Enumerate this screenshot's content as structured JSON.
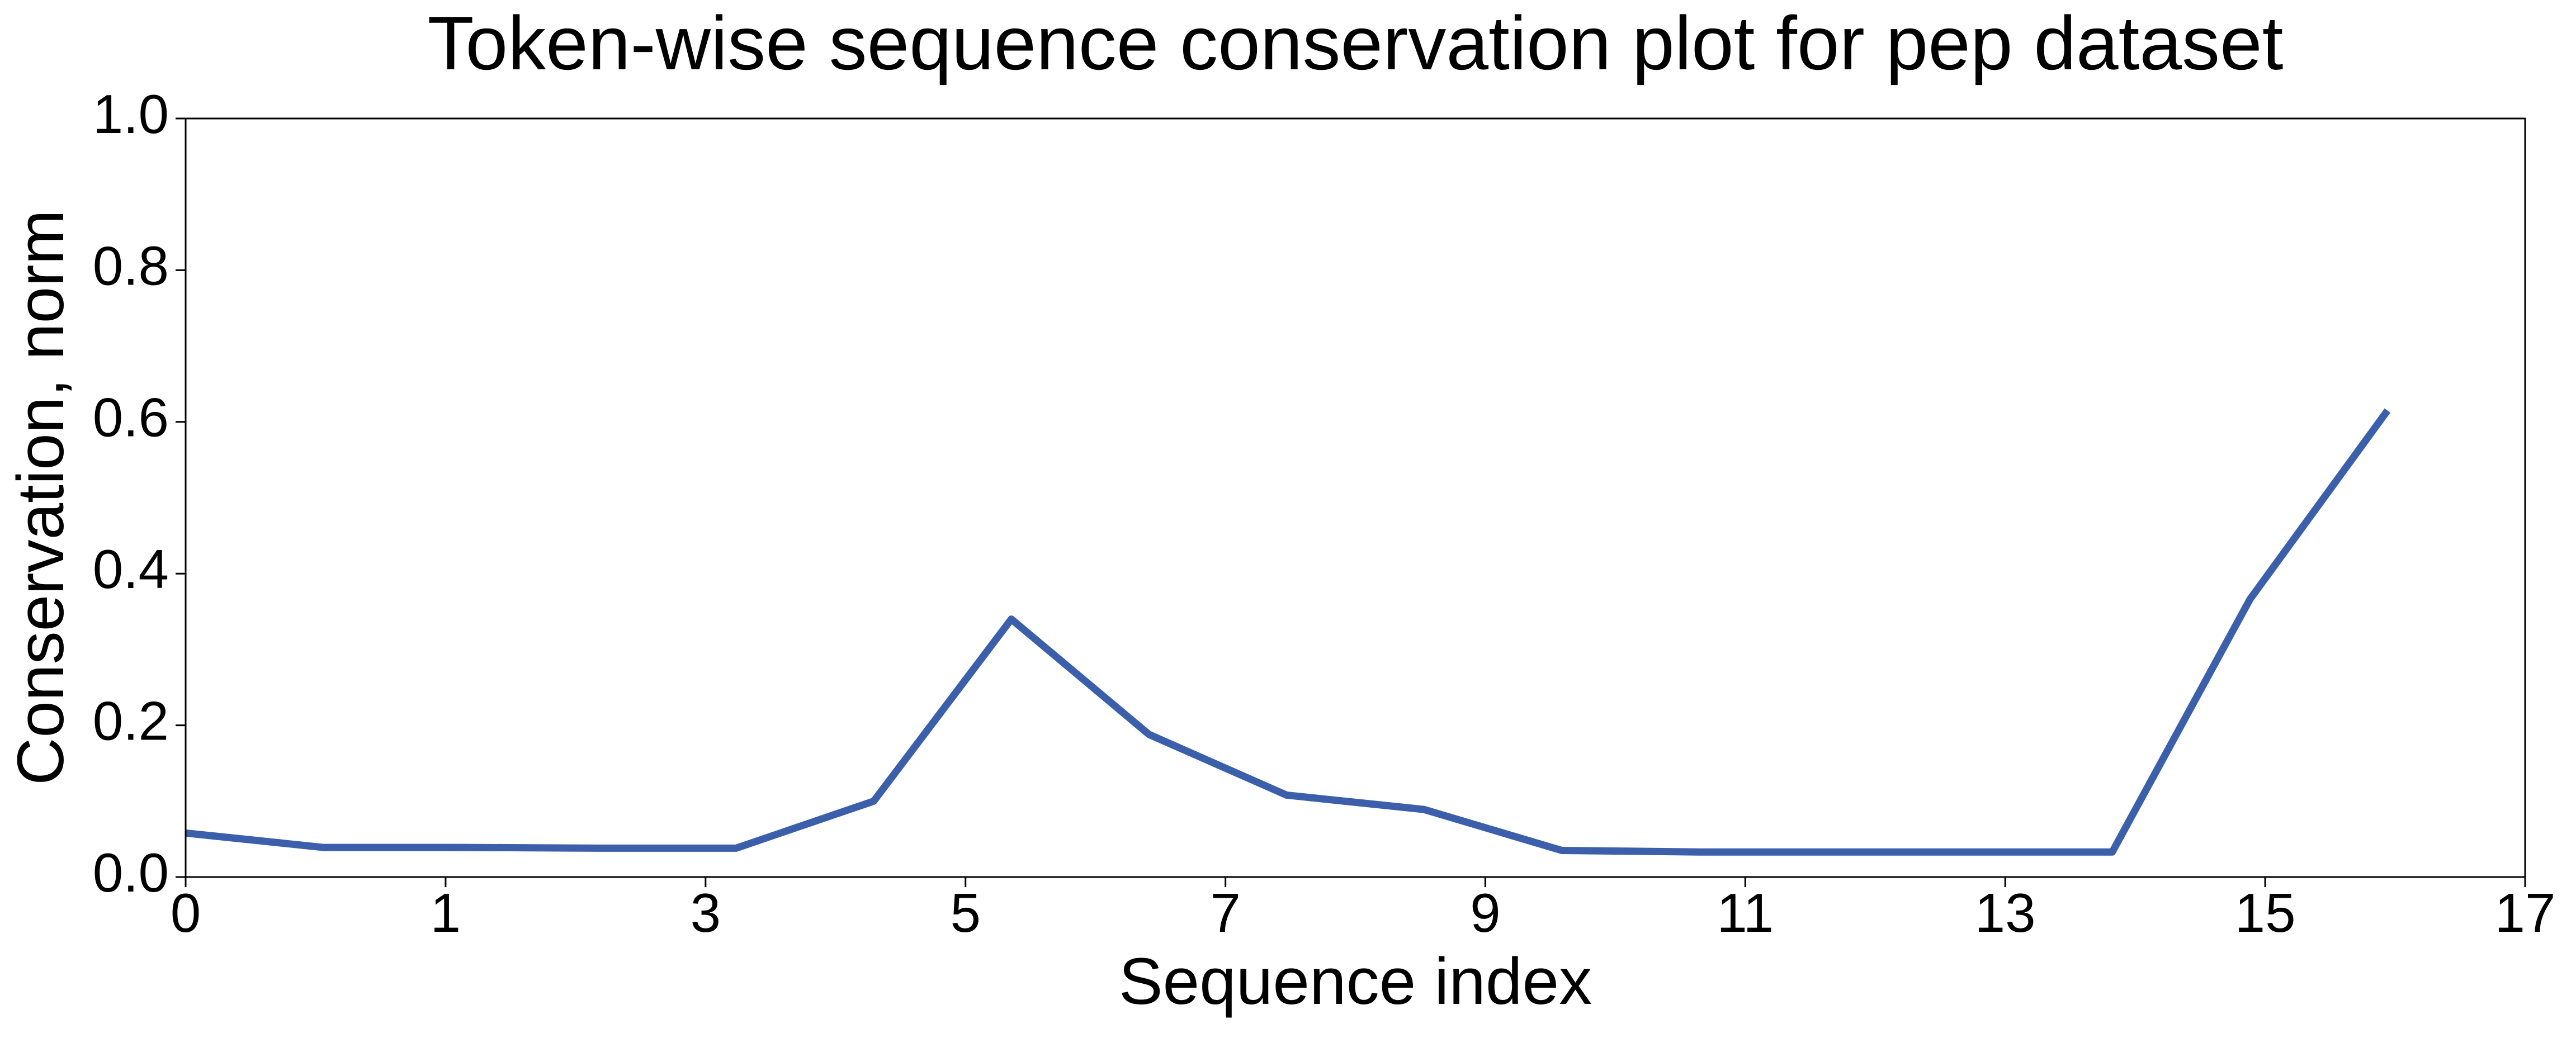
{
  "chart_data": {
    "type": "line",
    "title": "Token-wise sequence conservation plot for pep dataset",
    "xlabel": "Sequence index",
    "ylabel": "Conservation, norm",
    "x": [
      0,
      1,
      2,
      3,
      4,
      5,
      6,
      7,
      8,
      9,
      10,
      11,
      12,
      13,
      14,
      15,
      16
    ],
    "series": [
      {
        "color": "#3b5fab",
        "values": [
          0.058,
          0.039,
          0.039,
          0.038,
          0.038,
          0.1,
          0.34,
          0.188,
          0.108,
          0.089,
          0.035,
          0.033,
          0.033,
          0.033,
          0.033,
          0.366,
          0.615
        ]
      }
    ],
    "xlim": [
      0,
      17
    ],
    "xticks": [
      {
        "value": 0,
        "label": "0"
      },
      {
        "value": 1.889,
        "label": "1"
      },
      {
        "value": 3.778,
        "label": "3"
      },
      {
        "value": 5.667,
        "label": "5"
      },
      {
        "value": 7.556,
        "label": "7"
      },
      {
        "value": 9.444,
        "label": "9"
      },
      {
        "value": 11.333,
        "label": "11"
      },
      {
        "value": 13.222,
        "label": "13"
      },
      {
        "value": 15.111,
        "label": "15"
      },
      {
        "value": 17,
        "label": "17"
      }
    ],
    "ylim": [
      0,
      1
    ],
    "yticks": [
      {
        "value": 0,
        "label": "0.0"
      },
      0.2,
      0.4,
      0.6,
      0.8,
      {
        "value": 1,
        "label": "1.0"
      }
    ],
    "grid": false
  }
}
